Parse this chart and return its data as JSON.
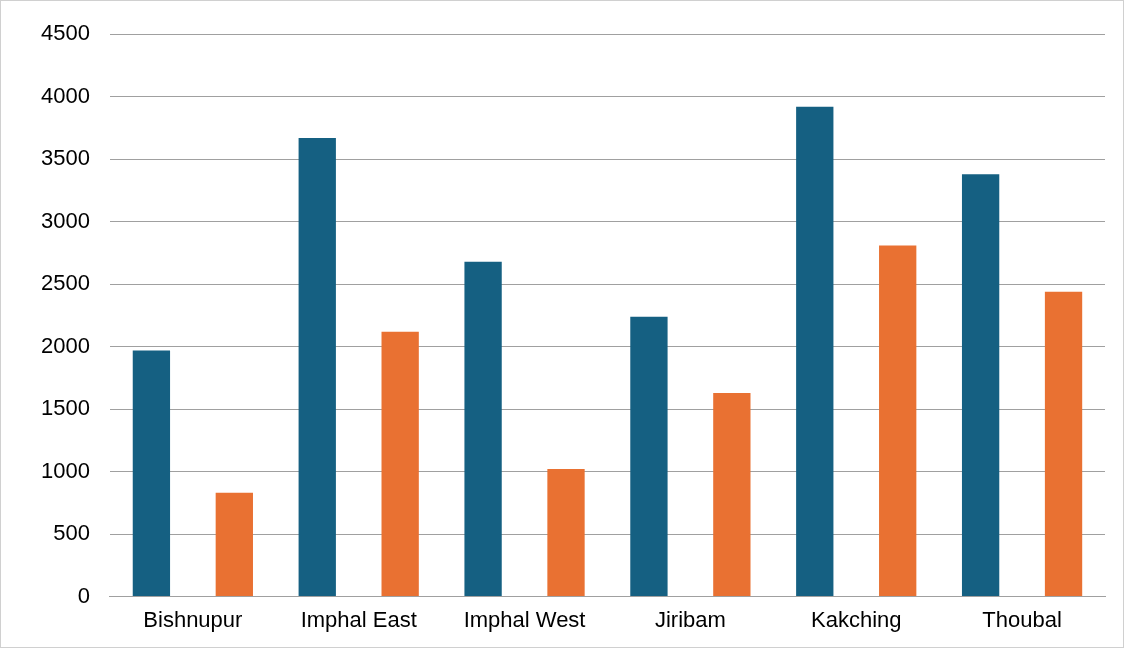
{
  "chart_data": {
    "type": "bar",
    "categories": [
      "Bishnupur",
      "Imphal East",
      "Imphal West",
      "Jiribam",
      "Kakching",
      "Thoubal"
    ],
    "series": [
      {
        "color": "#156082",
        "values": [
          1970,
          3670,
          2680,
          2240,
          3920,
          3380
        ]
      },
      {
        "color": "#e97132",
        "values": [
          830,
          2120,
          1020,
          1630,
          2810,
          2440
        ]
      }
    ],
    "ylim": [
      0,
      4500
    ],
    "yticks": [
      0,
      500,
      1000,
      1500,
      2000,
      2500,
      3000,
      3500,
      4000,
      4500
    ],
    "grid": "y",
    "legend": false
  }
}
